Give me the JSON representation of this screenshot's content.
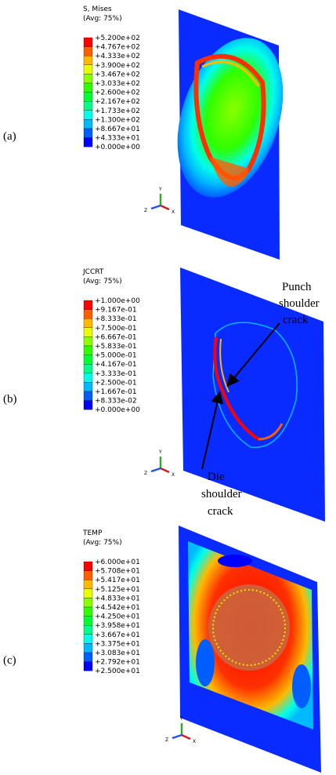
{
  "panels": [
    {
      "label": "(a)",
      "legend_title": [
        "S, Mises",
        "(Avg: 75%)"
      ],
      "legend_values": [
        "+5.200e+02",
        "+4.767e+02",
        "+4.333e+02",
        "+3.900e+02",
        "+3.467e+02",
        "+3.033e+02",
        "+2.600e+02",
        "+2.167e+02",
        "+1.733e+02",
        "+1.300e+02",
        "+8.667e+01",
        "+4.333e+01",
        "+0.000e+00"
      ]
    },
    {
      "label": "(b)",
      "legend_title": [
        "JCCRT",
        "(Avg: 75%)"
      ],
      "legend_values": [
        "+1.000e+00",
        "+9.167e-01",
        "+8.333e-01",
        "+7.500e-01",
        "+6.667e-01",
        "+5.833e-01",
        "+5.000e-01",
        "+4.167e-01",
        "+3.333e-01",
        "+2.500e-01",
        "+1.667e-01",
        "+8.333e-02",
        "+0.000e+00"
      ],
      "annotations": [
        [
          "Punch",
          "shoulder",
          "crack"
        ],
        [
          "Die",
          "shoulder",
          "crack"
        ]
      ]
    },
    {
      "label": "(c)",
      "legend_title": [
        "TEMP",
        "(Avg: 75%)"
      ],
      "legend_values": [
        "+6.000e+01",
        "+5.708e+01",
        "+5.417e+01",
        "+5.125e+01",
        "+4.833e+01",
        "+4.542e+01",
        "+4.250e+01",
        "+3.958e+01",
        "+3.667e+01",
        "+3.375e+01",
        "+3.083e+01",
        "+2.792e+01",
        "+2.500e+01"
      ]
    }
  ],
  "axis_labels": [
    "Y",
    "Z",
    "X"
  ]
}
